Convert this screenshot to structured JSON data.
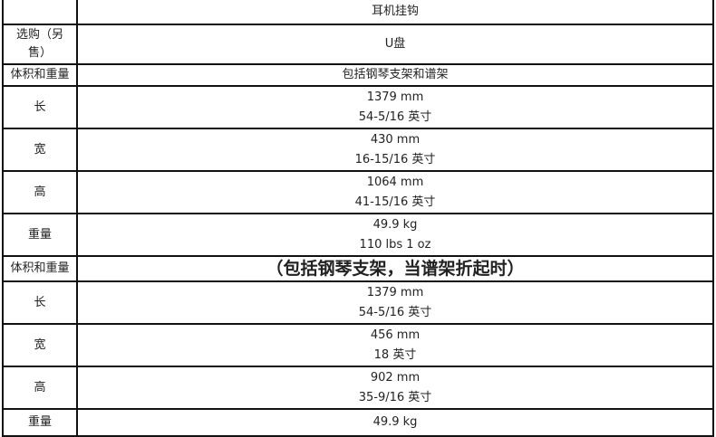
{
  "rows": [
    {
      "label": "",
      "lines": [
        "耳机挂钩"
      ]
    },
    {
      "label": "选购（另售）",
      "lines": [
        "U盘"
      ]
    },
    {
      "label": "体积和重量",
      "lines": [
        "包括钢琴支架和谱架"
      ]
    },
    {
      "label": "长",
      "lines": [
        "1379 mm",
        "54-5/16 英寸"
      ]
    },
    {
      "label": "宽",
      "lines": [
        "430 mm",
        "16-15/16 英寸"
      ]
    },
    {
      "label": "高",
      "lines": [
        "1064 mm",
        "41-15/16 英寸"
      ]
    },
    {
      "label": "重量",
      "lines": [
        "49.9 kg",
        "110 lbs 1 oz"
      ]
    },
    {
      "label": "体积和重量",
      "lines": [
        "（包括钢琴支架，当谱架折起时）"
      ]
    },
    {
      "label": "长",
      "lines": [
        "1379 mm",
        "54-5/16 英寸"
      ]
    },
    {
      "label": "宽",
      "lines": [
        "456 mm",
        "18 英寸"
      ]
    },
    {
      "label": "高",
      "lines": [
        "902 mm",
        "35-9/16 英寸"
      ]
    },
    {
      "label": "重量",
      "lines": [
        "49.9 kg"
      ]
    }
  ]
}
